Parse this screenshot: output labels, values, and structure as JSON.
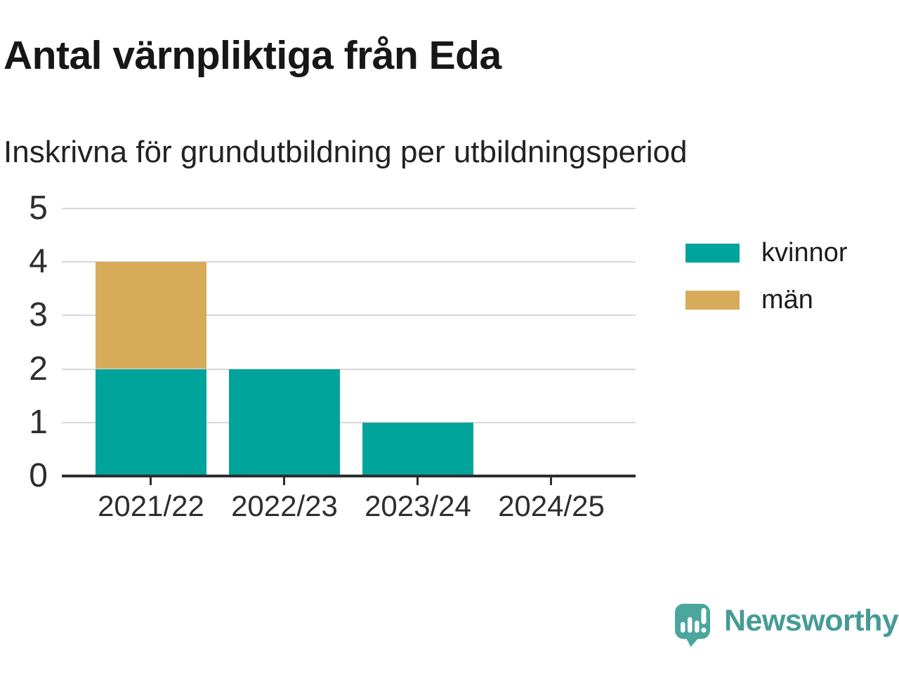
{
  "header": {
    "title": "Antal värnpliktiga från Eda",
    "subtitle": "Inskrivna för grundutbildning per utbildningsperiod"
  },
  "chart_data": {
    "type": "bar",
    "stacked": true,
    "title": "Antal värnpliktiga från Eda",
    "subtitle": "Inskrivna för grundutbildning per utbildningsperiod",
    "categories": [
      "2021/22",
      "2022/23",
      "2023/24",
      "2024/25"
    ],
    "series": [
      {
        "name": "kvinnor",
        "color": "#00a49b",
        "values": [
          2,
          2,
          1,
          0
        ]
      },
      {
        "name": "män",
        "color": "#d8ab5a",
        "values": [
          2,
          0,
          0,
          0
        ]
      }
    ],
    "totals": [
      4,
      2,
      1,
      0
    ],
    "xlabel": "",
    "ylabel": "",
    "ylim": [
      0,
      5
    ],
    "yticks": [
      0,
      1,
      2,
      3,
      4,
      5
    ],
    "grid": "horizontal-gridlines",
    "legend_position": "right"
  },
  "branding": {
    "wordmark": "Newsworthy",
    "brand_color": "#459b95",
    "icon_color": "#4ba69e",
    "icon": "newsworthy-speech-bubble-chart-icon"
  },
  "colors": {
    "background": "#ffffff",
    "axis": "#2d2d2d",
    "gridline": "#d8d8d8",
    "text": "#1c1c1c"
  }
}
